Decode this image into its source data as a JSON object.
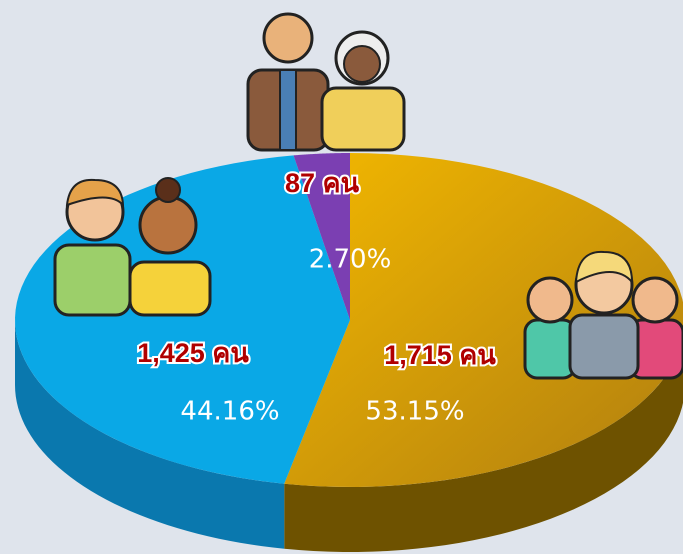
{
  "chart_data": {
    "type": "pie3d",
    "values": [
      1715,
      1425,
      87
    ],
    "value_labels": [
      "1,715 คน",
      "1,425 คน",
      "87 คน"
    ],
    "percentages": [
      53.15,
      44.16,
      2.7
    ],
    "percentage_labels": [
      "53.15%",
      "44.16%",
      "2.70%"
    ],
    "colors": [
      "#e9ad00",
      "#0aa8e6",
      "#7b3fb2"
    ],
    "side_colors": [
      "#6e5200",
      "#0a78ae",
      "#4f2777"
    ]
  }
}
